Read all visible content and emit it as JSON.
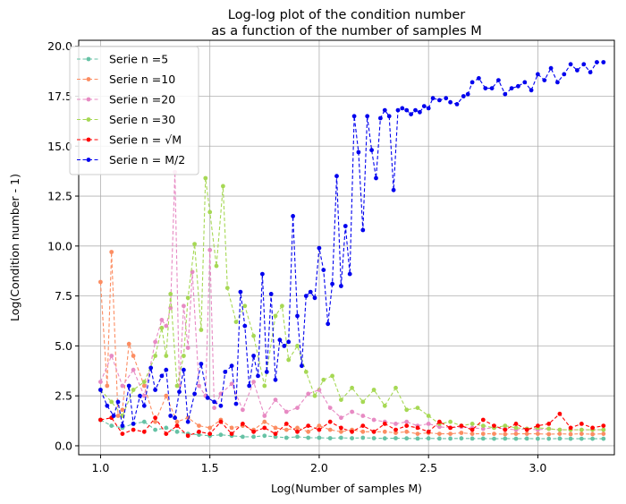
{
  "chart_data": {
    "type": "line",
    "title": "Log-log plot of the condition number",
    "subtitle": "as a function of the number of samples M",
    "xlabel": "Log(Number of samples M)",
    "ylabel": "Log(Condition number - 1)",
    "xlim": [
      0.9,
      3.35
    ],
    "ylim": [
      -0.45,
      20.3
    ],
    "xticks": [
      1.0,
      1.5,
      2.0,
      2.5,
      3.0
    ],
    "xtick_labels": [
      "1.0",
      "1.5",
      "2.0",
      "2.5",
      "3.0"
    ],
    "yticks": [
      0.0,
      2.5,
      5.0,
      7.5,
      10.0,
      12.5,
      15.0,
      17.5,
      20.0
    ],
    "ytick_labels": [
      "0.0",
      "2.5",
      "5.0",
      "7.5",
      "10.0",
      "12.5",
      "15.0",
      "17.5",
      "20.0"
    ],
    "grid": true,
    "legend_position": "top-left",
    "series": [
      {
        "name": "Serie n =5",
        "color": "#66c2a5",
        "x": [
          1.0,
          1.05,
          1.1,
          1.15,
          1.2,
          1.25,
          1.3,
          1.35,
          1.4,
          1.45,
          1.5,
          1.55,
          1.6,
          1.65,
          1.7,
          1.75,
          1.8,
          1.85,
          1.9,
          1.95,
          2.0,
          2.05,
          2.1,
          2.15,
          2.2,
          2.25,
          2.3,
          2.35,
          2.4,
          2.45,
          2.5,
          2.55,
          2.6,
          2.65,
          2.7,
          2.75,
          2.8,
          2.85,
          2.9,
          2.95,
          3.0,
          3.05,
          3.1,
          3.15,
          3.2,
          3.25,
          3.3
        ],
        "y": [
          1.3,
          1.0,
          0.9,
          1.1,
          1.2,
          0.8,
          0.9,
          0.7,
          0.6,
          0.55,
          0.5,
          0.55,
          0.5,
          0.45,
          0.45,
          0.5,
          0.45,
          0.4,
          0.45,
          0.4,
          0.4,
          0.38,
          0.4,
          0.38,
          0.4,
          0.38,
          0.37,
          0.38,
          0.37,
          0.36,
          0.37,
          0.36,
          0.36,
          0.37,
          0.36,
          0.36,
          0.35,
          0.36,
          0.35,
          0.36,
          0.35,
          0.35,
          0.36,
          0.35,
          0.35,
          0.35,
          0.35
        ]
      },
      {
        "name": "Serie n =10",
        "color": "#fc8d62",
        "x": [
          1.0,
          1.03,
          1.05,
          1.08,
          1.1,
          1.13,
          1.15,
          1.2,
          1.25,
          1.3,
          1.35,
          1.4,
          1.45,
          1.5,
          1.55,
          1.6,
          1.65,
          1.7,
          1.75,
          1.8,
          1.85,
          1.9,
          1.95,
          2.0,
          2.05,
          2.1,
          2.15,
          2.2,
          2.25,
          2.3,
          2.35,
          2.4,
          2.45,
          2.5,
          2.55,
          2.6,
          2.65,
          2.7,
          2.75,
          2.8,
          2.85,
          2.9,
          2.95,
          3.0,
          3.05,
          3.1,
          3.15,
          3.2,
          3.25,
          3.3
        ],
        "y": [
          8.2,
          3.0,
          9.7,
          1.5,
          1.8,
          5.1,
          4.5,
          3.0,
          1.2,
          2.5,
          1.2,
          1.4,
          1.0,
          0.9,
          1.3,
          0.9,
          1.0,
          0.8,
          1.2,
          0.9,
          0.8,
          0.9,
          0.7,
          1.0,
          0.8,
          0.7,
          0.8,
          0.7,
          0.7,
          0.7,
          0.65,
          0.7,
          0.6,
          0.65,
          0.6,
          0.6,
          0.65,
          0.6,
          0.6,
          0.6,
          0.58,
          0.6,
          0.6,
          0.6,
          0.58,
          0.6,
          0.58,
          0.6,
          0.58,
          0.6
        ]
      },
      {
        "name": "Serie n =20",
        "color": "#e78ac3",
        "x": [
          1.0,
          1.05,
          1.1,
          1.15,
          1.2,
          1.25,
          1.28,
          1.3,
          1.32,
          1.34,
          1.36,
          1.38,
          1.4,
          1.42,
          1.45,
          1.48,
          1.5,
          1.52,
          1.55,
          1.6,
          1.65,
          1.7,
          1.75,
          1.8,
          1.85,
          1.9,
          1.95,
          2.0,
          2.05,
          2.1,
          2.15,
          2.2,
          2.25,
          2.3,
          2.35,
          2.4,
          2.45,
          2.5,
          2.55,
          2.6,
          2.65,
          2.7,
          2.75,
          2.8,
          2.85,
          2.9,
          2.95,
          3.0,
          3.05,
          3.1,
          3.15,
          3.2,
          3.25,
          3.3
        ],
        "y": [
          3.2,
          4.5,
          3.0,
          3.8,
          2.5,
          5.2,
          6.3,
          6.0,
          6.9,
          13.7,
          3.0,
          7.0,
          4.9,
          8.7,
          3.0,
          2.5,
          9.8,
          1.9,
          2.6,
          3.1,
          1.8,
          3.2,
          1.5,
          2.3,
          1.7,
          1.9,
          2.6,
          2.8,
          1.9,
          1.4,
          1.7,
          1.5,
          1.3,
          1.2,
          1.1,
          1.2,
          1.0,
          1.1,
          0.95,
          0.9,
          0.95,
          0.9,
          0.85,
          0.9,
          0.85,
          0.8,
          0.85,
          0.8,
          0.85,
          0.8,
          0.8,
          0.8,
          0.8,
          0.8
        ]
      },
      {
        "name": "Serie n =30",
        "color": "#a6d854",
        "x": [
          1.0,
          1.05,
          1.1,
          1.15,
          1.2,
          1.25,
          1.28,
          1.3,
          1.32,
          1.35,
          1.38,
          1.4,
          1.43,
          1.46,
          1.48,
          1.5,
          1.53,
          1.56,
          1.58,
          1.62,
          1.66,
          1.7,
          1.75,
          1.8,
          1.83,
          1.86,
          1.9,
          1.94,
          1.98,
          2.02,
          2.06,
          2.1,
          2.15,
          2.2,
          2.25,
          2.3,
          2.35,
          2.4,
          2.45,
          2.5,
          2.55,
          2.6,
          2.65,
          2.7,
          2.75,
          2.8,
          2.85,
          2.9,
          2.95,
          3.0,
          3.05,
          3.1,
          3.15,
          3.2,
          3.25,
          3.3
        ],
        "y": [
          2.8,
          2.2,
          1.5,
          2.8,
          3.2,
          4.5,
          5.9,
          4.5,
          7.6,
          3.0,
          4.5,
          7.4,
          10.1,
          5.8,
          13.4,
          11.7,
          9.0,
          13.0,
          7.9,
          6.2,
          7.0,
          5.5,
          3.0,
          6.5,
          7.0,
          4.3,
          5.0,
          3.7,
          2.5,
          3.3,
          3.5,
          2.3,
          2.9,
          2.2,
          2.8,
          2.0,
          2.9,
          1.8,
          1.9,
          1.5,
          1.1,
          1.2,
          1.0,
          1.1,
          1.0,
          0.9,
          1.0,
          0.9,
          0.85,
          0.9,
          0.85,
          0.8,
          0.8,
          0.8,
          0.8,
          0.8
        ]
      },
      {
        "name": "Serie n = √M",
        "color": "#ff0000",
        "x": [
          1.0,
          1.05,
          1.1,
          1.15,
          1.2,
          1.25,
          1.3,
          1.35,
          1.4,
          1.45,
          1.5,
          1.55,
          1.6,
          1.65,
          1.7,
          1.75,
          1.8,
          1.85,
          1.9,
          1.95,
          2.0,
          2.05,
          2.1,
          2.15,
          2.2,
          2.25,
          2.3,
          2.35,
          2.4,
          2.45,
          2.5,
          2.55,
          2.6,
          2.65,
          2.7,
          2.75,
          2.8,
          2.85,
          2.9,
          2.95,
          3.0,
          3.05,
          3.1,
          3.15,
          3.2,
          3.25,
          3.3
        ],
        "y": [
          1.3,
          1.4,
          0.6,
          0.8,
          0.7,
          1.4,
          0.6,
          1.0,
          0.5,
          0.7,
          0.6,
          1.2,
          0.6,
          1.1,
          0.7,
          0.9,
          0.6,
          1.1,
          0.7,
          1.0,
          0.8,
          1.2,
          0.9,
          0.7,
          1.0,
          0.7,
          1.1,
          0.8,
          1.0,
          0.9,
          0.7,
          1.2,
          0.9,
          1.0,
          0.8,
          1.3,
          1.0,
          0.8,
          1.1,
          0.8,
          1.0,
          1.1,
          1.6,
          0.9,
          1.1,
          0.9,
          1.0
        ]
      },
      {
        "name": "Serie n = M/2",
        "color": "#0000ee",
        "x": [
          1.0,
          1.03,
          1.06,
          1.08,
          1.1,
          1.13,
          1.15,
          1.18,
          1.2,
          1.23,
          1.25,
          1.28,
          1.3,
          1.32,
          1.34,
          1.36,
          1.38,
          1.4,
          1.43,
          1.46,
          1.49,
          1.52,
          1.55,
          1.57,
          1.6,
          1.62,
          1.64,
          1.66,
          1.68,
          1.7,
          1.72,
          1.74,
          1.76,
          1.78,
          1.8,
          1.82,
          1.84,
          1.86,
          1.88,
          1.9,
          1.92,
          1.94,
          1.96,
          1.98,
          2.0,
          2.02,
          2.04,
          2.06,
          2.08,
          2.1,
          2.12,
          2.14,
          2.16,
          2.18,
          2.2,
          2.22,
          2.24,
          2.26,
          2.28,
          2.3,
          2.32,
          2.34,
          2.36,
          2.38,
          2.4,
          2.42,
          2.44,
          2.46,
          2.48,
          2.5,
          2.52,
          2.55,
          2.58,
          2.6,
          2.63,
          2.66,
          2.68,
          2.7,
          2.73,
          2.76,
          2.79,
          2.82,
          2.85,
          2.88,
          2.91,
          2.94,
          2.97,
          3.0,
          3.03,
          3.06,
          3.09,
          3.12,
          3.15,
          3.18,
          3.21,
          3.24,
          3.27,
          3.3
        ],
        "y": [
          2.8,
          2.0,
          1.5,
          2.2,
          1.0,
          3.0,
          1.1,
          2.5,
          2.0,
          3.9,
          2.8,
          3.5,
          3.8,
          1.5,
          1.4,
          2.7,
          3.8,
          1.2,
          2.6,
          4.1,
          2.4,
          2.2,
          2.0,
          3.7,
          4.0,
          2.1,
          7.7,
          6.0,
          3.0,
          4.5,
          3.5,
          8.6,
          3.7,
          7.6,
          3.3,
          5.3,
          5.0,
          5.2,
          11.5,
          6.5,
          4.0,
          7.5,
          7.7,
          7.4,
          9.9,
          8.8,
          6.1,
          8.1,
          13.5,
          8.0,
          11.0,
          8.6,
          16.5,
          14.7,
          10.8,
          16.5,
          14.8,
          13.4,
          16.4,
          16.8,
          16.5,
          12.8,
          16.8,
          16.9,
          16.8,
          16.6,
          16.8,
          16.7,
          17.0,
          16.9,
          17.4,
          17.3,
          17.4,
          17.2,
          17.1,
          17.5,
          17.6,
          18.2,
          18.4,
          17.9,
          17.9,
          18.3,
          17.6,
          17.9,
          18.0,
          18.2,
          17.8,
          18.6,
          18.3,
          18.9,
          18.2,
          18.6,
          19.1,
          18.8,
          19.1,
          18.7,
          19.2,
          19.2
        ]
      }
    ]
  }
}
